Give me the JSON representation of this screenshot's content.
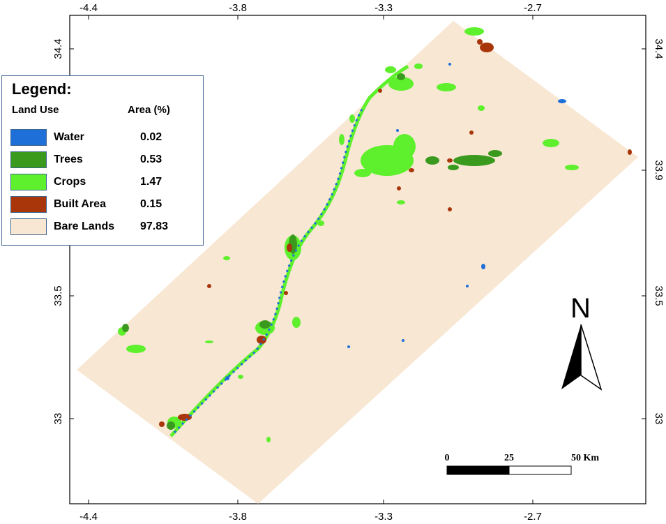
{
  "map": {
    "x_ticks": [
      "-4.4",
      "-3.8",
      "-3.3",
      "-2.7"
    ],
    "y_ticks": [
      "34.4",
      "33.9",
      "33.5",
      "33"
    ],
    "north_label": "N",
    "scale_bar": {
      "labels": [
        "0",
        "25",
        "50 Km"
      ]
    }
  },
  "legend": {
    "title": "Legend:",
    "col_land_use": "Land Use",
    "col_area": "Area (%)",
    "classes": [
      {
        "name": "Water",
        "value": "0.02",
        "color": "#1f6fd8"
      },
      {
        "name": "Trees",
        "value": "0.53",
        "color": "#3a9a1e"
      },
      {
        "name": "Crops",
        "value": "1.47",
        "color": "#5ef02c"
      },
      {
        "name": "Built Area",
        "value": "0.15",
        "color": "#a8360a"
      },
      {
        "name": "Bare Lands",
        "value": "97.83",
        "color": "#f8e7d3"
      }
    ]
  }
}
